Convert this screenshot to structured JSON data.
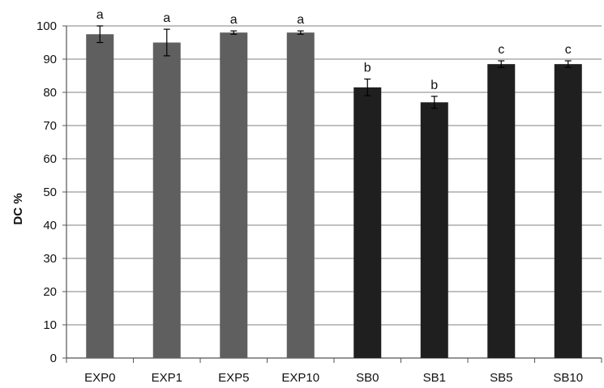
{
  "chart_data": {
    "type": "bar",
    "title": "",
    "xlabel": "",
    "ylabel": "DC %",
    "ylim": [
      0,
      100
    ],
    "yticks": [
      "0",
      "10",
      "20",
      "30",
      "40",
      "50",
      "60",
      "70",
      "80",
      "90",
      "100"
    ],
    "grid": true,
    "categories": [
      "EXP0",
      "EXP1",
      "EXP5",
      "EXP10",
      "SB0",
      "SB1",
      "SB5",
      "SB10"
    ],
    "values": [
      97.5,
      95,
      98,
      98,
      81.5,
      77,
      88.5,
      88.5
    ],
    "error": [
      2.5,
      4,
      0.5,
      0.5,
      2.5,
      1.8,
      1,
      1
    ],
    "significance": [
      "a",
      "a",
      "a",
      "a",
      "b",
      "b",
      "c",
      "c"
    ],
    "colors": {
      "EXP": "#5f5f5f",
      "SB": "#1f1f1f",
      "grid": "#9a9a9a",
      "axis": "#555555"
    }
  }
}
